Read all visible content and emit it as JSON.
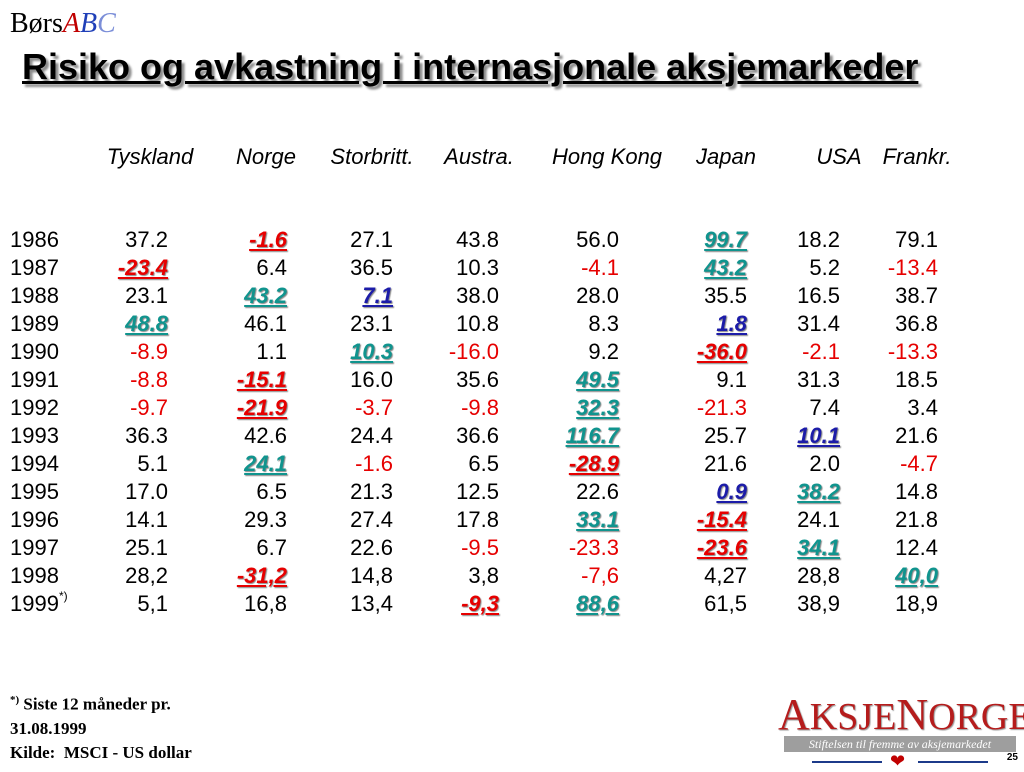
{
  "brand": {
    "part1": "Børs",
    "part2": "A",
    "part3": "B",
    "part4": "C"
  },
  "title": "Risiko og avkastning i internasjonale aksjemarkeder",
  "columns": [
    "Tyskland",
    "Norge",
    "Storbritt.",
    "Austra.",
    "Hong Kong",
    "Japan",
    "USA",
    "Frankr."
  ],
  "rows": [
    {
      "year": "1986",
      "note": "",
      "values": [
        "37.2",
        "-1.6",
        "27.1",
        "43.8",
        "56.0",
        "99.7",
        "18.2",
        "79.1"
      ],
      "styles": [
        "",
        "worst",
        "",
        "",
        "",
        "best",
        "",
        ""
      ]
    },
    {
      "year": "1987",
      "note": "",
      "values": [
        "-23.4",
        "6.4",
        "36.5",
        "10.3",
        "-4.1",
        "43.2",
        "5.2",
        "-13.4"
      ],
      "styles": [
        "worst",
        "",
        "",
        "",
        "neg",
        "best",
        "",
        "neg"
      ]
    },
    {
      "year": "1988",
      "note": "",
      "values": [
        "23.1",
        "43.2",
        "7.1",
        "38.0",
        "28.0",
        "35.5",
        "16.5",
        "38.7"
      ],
      "styles": [
        "",
        "best",
        "low",
        "",
        "",
        "",
        "",
        ""
      ]
    },
    {
      "year": "1989",
      "note": "",
      "values": [
        "48.8",
        "46.1",
        "23.1",
        "10.8",
        "8.3",
        "1.8",
        "31.4",
        "36.8"
      ],
      "styles": [
        "best",
        "",
        "",
        "",
        "",
        "low",
        "",
        ""
      ]
    },
    {
      "year": "1990",
      "note": "",
      "values": [
        "-8.9",
        "1.1",
        "10.3",
        "-16.0",
        "9.2",
        "-36.0",
        "-2.1",
        "-13.3"
      ],
      "styles": [
        "neg",
        "",
        "best",
        "neg",
        "",
        "worst",
        "neg",
        "neg"
      ]
    },
    {
      "year": "1991",
      "note": "",
      "values": [
        "-8.8",
        "-15.1",
        "16.0",
        "35.6",
        "49.5",
        "9.1",
        "31.3",
        "18.5"
      ],
      "styles": [
        "neg",
        "worst",
        "",
        "",
        "best",
        "",
        "",
        ""
      ]
    },
    {
      "year": "1992",
      "note": "",
      "values": [
        "-9.7",
        "-21.9",
        "-3.7",
        "-9.8",
        "32.3",
        "-21.3",
        "7.4",
        "3.4"
      ],
      "styles": [
        "neg",
        "worst",
        "neg",
        "neg",
        "best",
        "neg",
        "",
        ""
      ]
    },
    {
      "year": "1993",
      "note": "",
      "values": [
        "36.3",
        "42.6",
        "24.4",
        "36.6",
        "116.7",
        "25.7",
        "10.1",
        "21.6"
      ],
      "styles": [
        "",
        "",
        "",
        "",
        "best",
        "",
        "low",
        ""
      ]
    },
    {
      "year": "1994",
      "note": "",
      "values": [
        "5.1",
        "24.1",
        "-1.6",
        "6.5",
        "-28.9",
        "21.6",
        "2.0",
        "-4.7"
      ],
      "styles": [
        "",
        "best",
        "neg",
        "",
        "worst",
        "",
        "",
        "neg"
      ]
    },
    {
      "year": "1995",
      "note": "",
      "values": [
        "17.0",
        "6.5",
        "21.3",
        "12.5",
        "22.6",
        "0.9",
        "38.2",
        "14.8"
      ],
      "styles": [
        "",
        "",
        "",
        "",
        "",
        "low",
        "best",
        ""
      ]
    },
    {
      "year": "1996",
      "note": "",
      "values": [
        "14.1",
        "29.3",
        "27.4",
        "17.8",
        "33.1",
        "-15.4",
        "24.1",
        "21.8"
      ],
      "styles": [
        "",
        "",
        "",
        "",
        "best",
        "worst",
        "",
        ""
      ]
    },
    {
      "year": "1997",
      "note": "",
      "values": [
        "25.1",
        "6.7",
        "22.6",
        "-9.5",
        "-23.3",
        "-23.6",
        "34.1",
        "12.4"
      ],
      "styles": [
        "",
        "",
        "",
        "neg",
        "neg",
        "worst",
        "best",
        ""
      ]
    },
    {
      "year": "1998",
      "note": "",
      "values": [
        "28,2",
        "-31,2",
        "14,8",
        "3,8",
        "-7,6",
        "4,27",
        "28,8",
        "40,0"
      ],
      "styles": [
        "",
        "worst",
        "",
        "",
        "neg",
        "",
        "",
        "best"
      ]
    },
    {
      "year": "1999",
      "note": "*)",
      "values": [
        "5,1",
        "16,8",
        "13,4",
        "-9,3",
        "88,6",
        "61,5",
        "38,9",
        "18,9"
      ],
      "styles": [
        "",
        "",
        "",
        "worst",
        "best",
        "",
        "",
        ""
      ]
    }
  ],
  "footnote": {
    "marker": "*)",
    "line1": "Siste 12 måneder pr.",
    "line2": "31.08.1999",
    "line3": "Kilde:  MSCI - US dollar"
  },
  "logo": {
    "first": "A",
    "rest1": "KSJE",
    "second": "N",
    "rest2": "ORGE",
    "tagline": "Stiftelsen til fremme av aksjemarkedet"
  },
  "page_number": "25",
  "colors": {
    "positive_best": "#10948e",
    "negative": "#e60000",
    "low_positive": "#1c1ca8"
  }
}
